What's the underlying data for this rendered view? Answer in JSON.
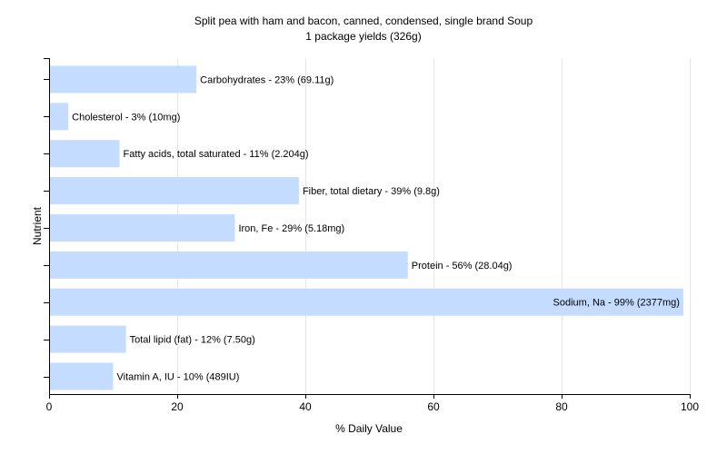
{
  "chart_data": {
    "type": "bar",
    "orientation": "horizontal",
    "title": "Split pea with ham and bacon, canned, condensed, single brand Soup",
    "subtitle": "1 package yields (326g)",
    "xlabel": "% Daily Value",
    "ylabel": "Nutrient",
    "xlim": [
      0,
      100
    ],
    "xticks": [
      0,
      20,
      40,
      60,
      80,
      100
    ],
    "grid": true,
    "bar_color": "#c4dcff",
    "categories": [
      "Carbohydrates",
      "Cholesterol",
      "Fatty acids, total saturated",
      "Fiber, total dietary",
      "Iron, Fe",
      "Protein",
      "Sodium, Na",
      "Total lipid (fat)",
      "Vitamin A, IU"
    ],
    "values": [
      23,
      3,
      11,
      39,
      29,
      56,
      99,
      12,
      10
    ],
    "labels": [
      "Carbohydrates - 23% (69.11g)",
      "Cholesterol - 3% (10mg)",
      "Fatty acids, total saturated - 11% (2.204g)",
      "Fiber, total dietary - 39% (9.8g)",
      "Iron, Fe - 29% (5.18mg)",
      "Protein - 56% (28.04g)",
      "Sodium, Na - 99% (2377mg)",
      "Total lipid (fat) - 12% (7.50g)",
      "Vitamin A, IU - 10% (489IU)"
    ]
  }
}
